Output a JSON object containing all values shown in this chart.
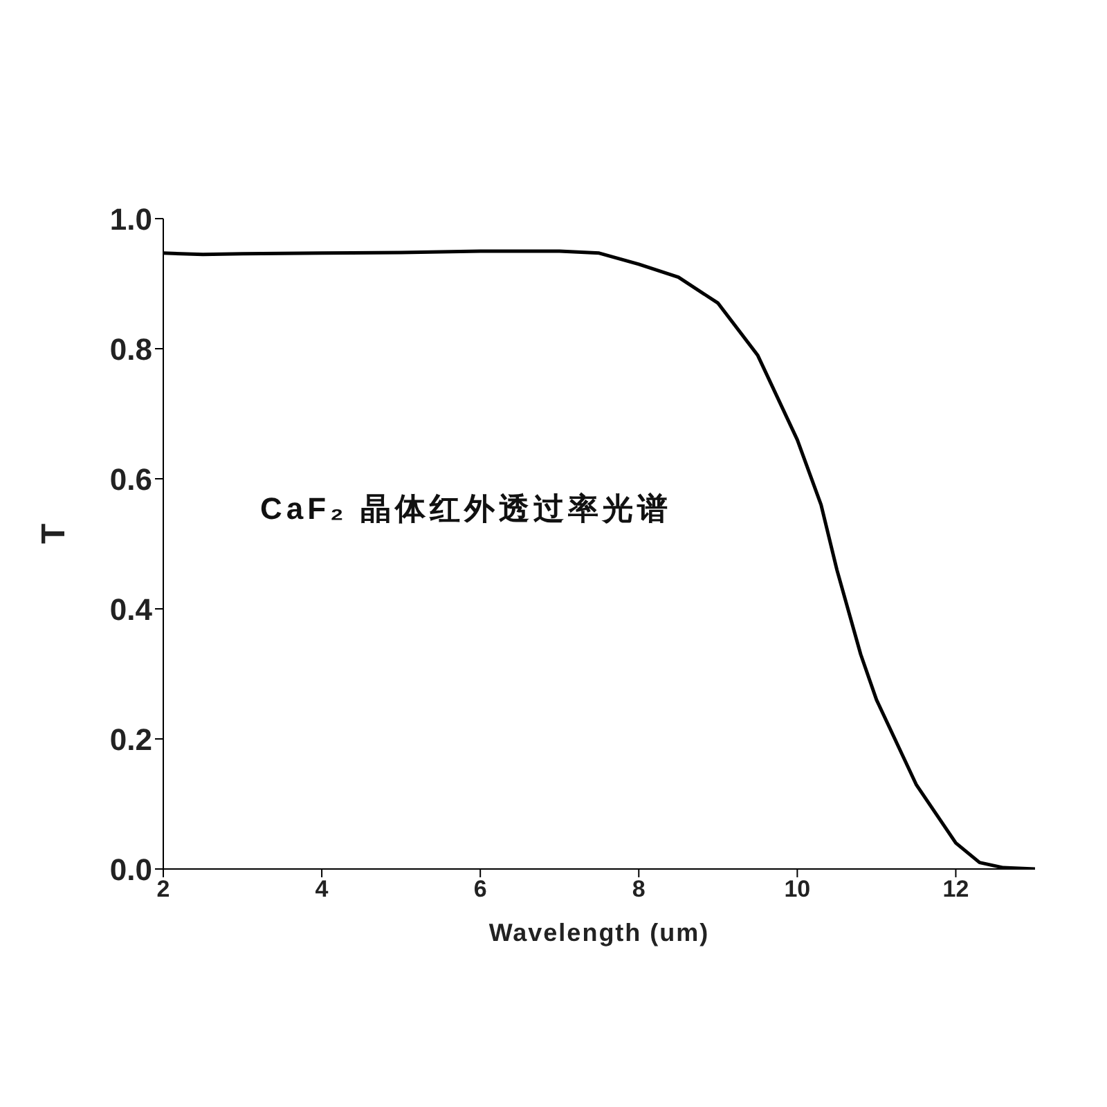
{
  "chart_data": {
    "type": "line",
    "xlabel": "Wavelength (um)",
    "ylabel": "T",
    "annotations": [
      "CaF₂ 晶体红外透过率光谱"
    ],
    "x": [
      2,
      2.5,
      3,
      4,
      5,
      6,
      7,
      7.5,
      8,
      8.5,
      9,
      9.5,
      10,
      10.3,
      10.5,
      10.8,
      11,
      11.5,
      12,
      12.3,
      12.6,
      13
    ],
    "series": [
      {
        "color": "#000000",
        "values": [
          0.947,
          0.945,
          0.946,
          0.947,
          0.948,
          0.95,
          0.95,
          0.947,
          0.93,
          0.91,
          0.87,
          0.79,
          0.66,
          0.56,
          0.46,
          0.33,
          0.26,
          0.13,
          0.04,
          0.01,
          0.002,
          0
        ]
      }
    ],
    "xlim": [
      2,
      13
    ],
    "xticks": [
      2,
      4,
      6,
      8,
      10,
      12
    ],
    "ylim": [
      0,
      1
    ],
    "yticks": [
      {
        "value": 0,
        "label": "0.0"
      },
      {
        "value": 0.2,
        "label": "0.2"
      },
      {
        "value": 0.4,
        "label": "0.4"
      },
      {
        "value": 0.6,
        "label": "0.6"
      },
      {
        "value": 0.8,
        "label": "0.8"
      },
      {
        "value": 1,
        "label": "1.0"
      }
    ],
    "grid": false,
    "legend": false,
    "marker": "none",
    "line_style": "solid"
  }
}
